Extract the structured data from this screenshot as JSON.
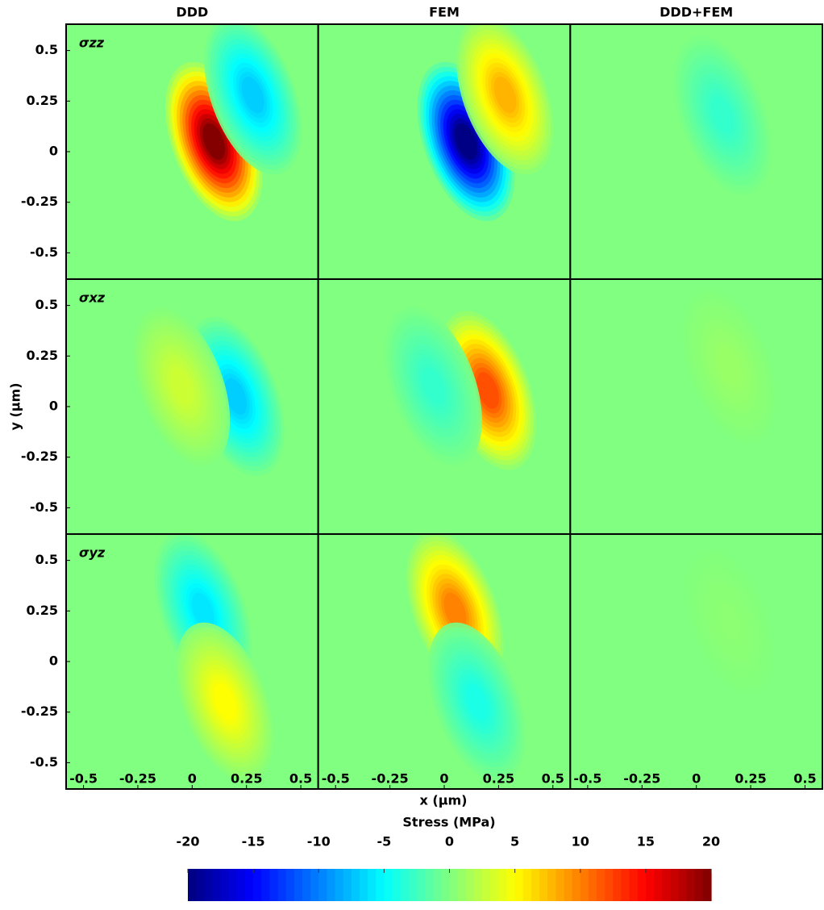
{
  "chart_data": {
    "type": "contour",
    "colormap": "jet",
    "columns": [
      "DDD",
      "FEM",
      "DDD+FEM"
    ],
    "rows": [
      "σzz",
      "σxz",
      "σyz"
    ],
    "xlabel": "x (µm)",
    "ylabel": "y (µm)",
    "xlim": [
      -0.58,
      0.58
    ],
    "ylim": [
      -0.63,
      0.63
    ],
    "xticks": [
      -0.5,
      -0.25,
      0,
      0.25,
      0.5
    ],
    "yticks": [
      -0.5,
      -0.25,
      0,
      0.25,
      0.5
    ],
    "colorbar": {
      "label": "Stress (MPa)",
      "lim": [
        -20,
        20
      ],
      "ticks": [
        -20,
        -15,
        -10,
        -5,
        0,
        5,
        10,
        15,
        20
      ]
    },
    "panels": [
      [
        {
          "peaks": [
            {
              "x": 0.1,
              "y": 0.05,
              "value": 20
            },
            {
              "x": 0.28,
              "y": 0.28,
              "value": -7
            }
          ]
        },
        {
          "peaks": [
            {
              "x": 0.1,
              "y": 0.05,
              "value": -20
            },
            {
              "x": 0.28,
              "y": 0.28,
              "value": 8
            }
          ]
        },
        {
          "peaks": [
            {
              "x": 0.12,
              "y": 0.18,
              "value": -3
            }
          ]
        }
      ],
      [
        {
          "peaks": [
            {
              "x": 0.2,
              "y": 0.05,
              "value": -7
            },
            {
              "x": -0.05,
              "y": 0.1,
              "value": 3
            }
          ]
        },
        {
          "peaks": [
            {
              "x": 0.2,
              "y": 0.08,
              "value": 12
            },
            {
              "x": -0.05,
              "y": 0.1,
              "value": -3
            }
          ]
        },
        {
          "peaks": [
            {
              "x": 0.15,
              "y": 0.2,
              "value": 1
            }
          ]
        }
      ],
      [
        {
          "peaks": [
            {
              "x": 0.05,
              "y": 0.25,
              "value": -6
            },
            {
              "x": 0.15,
              "y": -0.2,
              "value": 5
            }
          ]
        },
        {
          "peaks": [
            {
              "x": 0.05,
              "y": 0.25,
              "value": 10
            },
            {
              "x": 0.15,
              "y": -0.2,
              "value": -4
            }
          ]
        },
        {
          "peaks": [
            {
              "x": 0.15,
              "y": 0.2,
              "value": 0.5
            }
          ]
        }
      ]
    ]
  }
}
